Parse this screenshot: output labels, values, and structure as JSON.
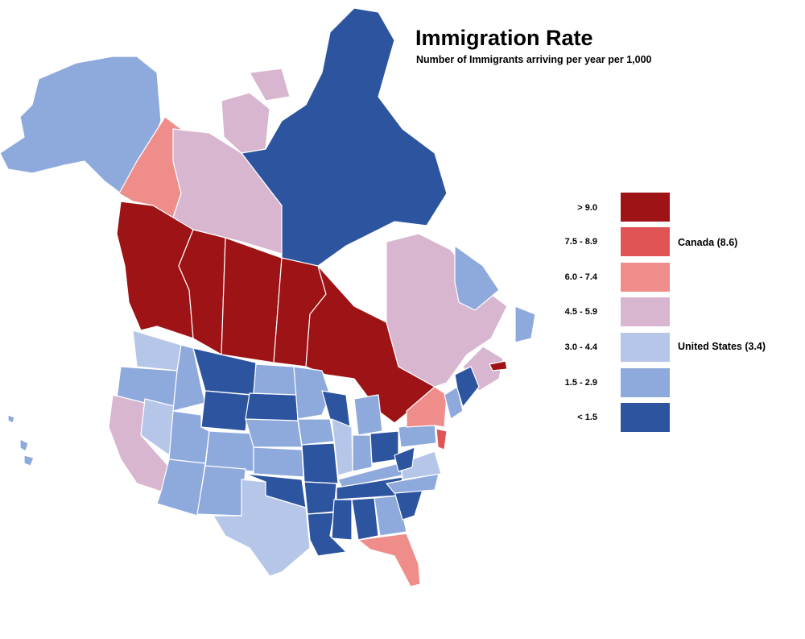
{
  "title": "Immigration Rate",
  "subtitle": "Number of Immigrants arriving per year per 1,000",
  "legend": [
    {
      "label": "> 9.0",
      "color": "#9e1316",
      "note": ""
    },
    {
      "label": "7.5 - 8.9",
      "color": "#e05456",
      "note": "Canada (8.6)"
    },
    {
      "label": "6.0 - 7.4",
      "color": "#ef8d8b",
      "note": ""
    },
    {
      "label": "4.5 - 5.9",
      "color": "#d8b6cf",
      "note": ""
    },
    {
      "label": "3.0 - 4.4",
      "color": "#b5c6e8",
      "note": "United States (3.4)"
    },
    {
      "label": "1.5 - 2.9",
      "color": "#8eaadd",
      "note": ""
    },
    {
      "label": "< 1.5",
      "color": "#2d549f",
      "note": ""
    }
  ]
}
